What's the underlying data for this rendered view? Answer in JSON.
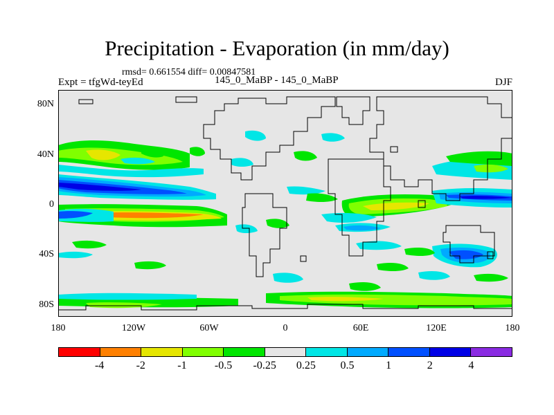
{
  "title": "Precipitation - Evaporation (in mm/day)",
  "subtitle": {
    "rmsd_line": "rmsd= 0.661554 diff= 0.00847581",
    "left": "Expt = tfgWd-teyEd",
    "center": "145_0_MaBP - 145_0_MaBP",
    "right": "DJF"
  },
  "axes": {
    "lat_labels": [
      "80N",
      "40N",
      "0",
      "40S",
      "80S"
    ],
    "lon_labels": [
      "180",
      "120W",
      "60W",
      "0",
      "60E",
      "120E",
      "180"
    ]
  },
  "colorbar": {
    "colors": [
      "#ff0000",
      "#ff8000",
      "#e6e600",
      "#80ff00",
      "#00e600",
      "#e6e6e6",
      "#00e6e6",
      "#00aaff",
      "#0050ff",
      "#0000e6",
      "#8a2be2"
    ],
    "labels": [
      "-4",
      "-2",
      "-1",
      "-0.5",
      "-0.25",
      "0.25",
      "0.5",
      "1",
      "2",
      "4"
    ]
  },
  "colors": {
    "background": "#e6e6e6",
    "coastline": "#000000"
  }
}
